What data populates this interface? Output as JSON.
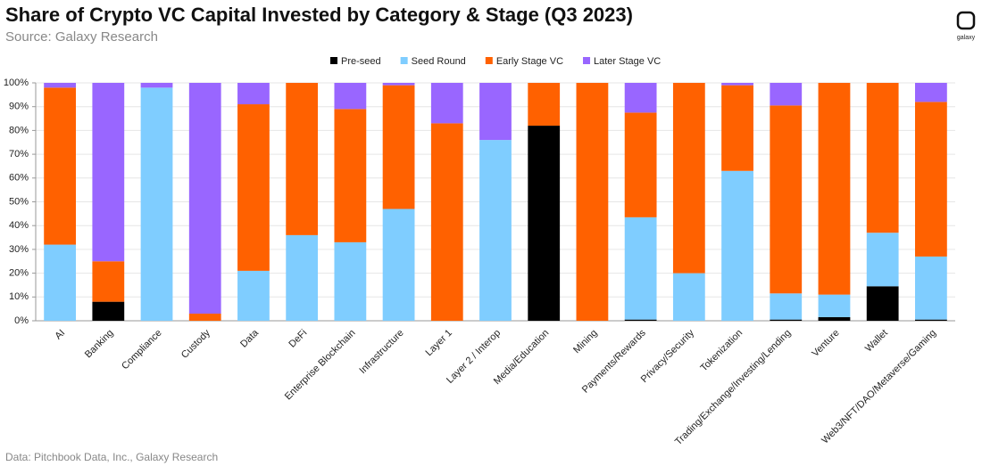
{
  "chart_data": {
    "type": "stacked_bar",
    "title": "Share of Crypto VC Capital Invested by Category & Stage (Q3 2023)",
    "subtitle": "Source: Galaxy Research",
    "footnote": "Data: Pitchbook Data, Inc., Galaxy Research",
    "logo_text": "galaxy",
    "categories": [
      "AI",
      "Banking",
      "Compliance",
      "Custody",
      "Data",
      "DeFi",
      "Enterprise Blockchain",
      "Infrastructure",
      "Layer 1",
      "Layer 2 / Interop",
      "Media/Education",
      "Mining",
      "Payments/Rewards",
      "Privacy/Security",
      "Tokenization",
      "Trading/Exchange/Investing/Lending",
      "Venture",
      "Wallet",
      "Web3/NFT/DAO/Metaverse/Gaming"
    ],
    "series": [
      {
        "name": "Pre-seed",
        "color": "#000000",
        "values": [
          0,
          8,
          0,
          0,
          0,
          0,
          0,
          0,
          0,
          0,
          82,
          0,
          0.5,
          0,
          0,
          0.5,
          1.5,
          14.5,
          0.5
        ]
      },
      {
        "name": "Seed Round",
        "color": "#7fcdff",
        "values": [
          32,
          0,
          98,
          0,
          21,
          36,
          33,
          47,
          0,
          76,
          0,
          0,
          43,
          20,
          63,
          11,
          9.5,
          22.5,
          26.5
        ]
      },
      {
        "name": "Early Stage VC",
        "color": "#ff6100",
        "values": [
          66,
          17,
          0,
          3,
          70,
          64,
          56,
          52,
          83,
          0,
          18,
          100,
          44,
          80,
          36,
          79,
          89,
          63,
          65
        ]
      },
      {
        "name": "Later Stage VC",
        "color": "#9966ff",
        "values": [
          2,
          75,
          2,
          97,
          9,
          0,
          11,
          1,
          17,
          24,
          0,
          0,
          12.5,
          0,
          1,
          9.5,
          0,
          0,
          8
        ]
      }
    ],
    "ylim": [
      0,
      100
    ],
    "yticks": [
      {
        "value": 0,
        "label": "0%"
      },
      {
        "value": 10,
        "label": "10%"
      },
      {
        "value": 20,
        "label": "20%"
      },
      {
        "value": 30,
        "label": "30%"
      },
      {
        "value": 40,
        "label": "40%"
      },
      {
        "value": 50,
        "label": "50%"
      },
      {
        "value": 60,
        "label": "60%"
      },
      {
        "value": 70,
        "label": "70%"
      },
      {
        "value": 80,
        "label": "80%"
      },
      {
        "value": 90,
        "label": "90%"
      },
      {
        "value": 100,
        "label": "100%"
      }
    ],
    "grid": true,
    "legend": "top"
  }
}
